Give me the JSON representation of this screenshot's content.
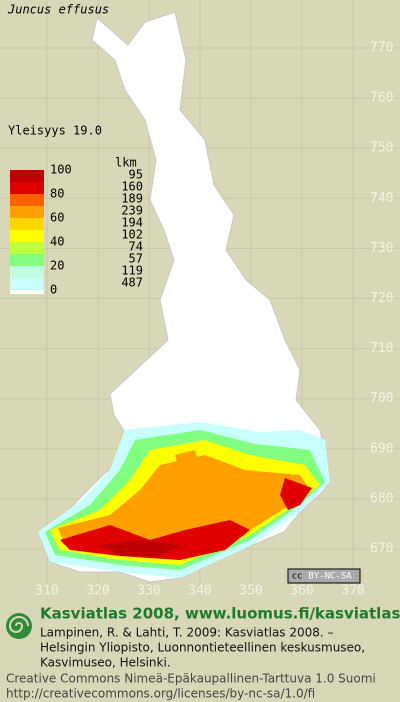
{
  "header": {
    "title": "Juncus effusus",
    "frequency": "Yleisyys  19.0"
  },
  "legend": {
    "count_header": "lkm",
    "scale_labels": [
      "100",
      "80",
      "60",
      "40",
      "20",
      "0"
    ],
    "counts": [
      "95",
      "160",
      "189",
      "239",
      "194",
      "102",
      "74",
      "57",
      "119",
      "487"
    ]
  },
  "grid": {
    "north": [
      "770",
      "760",
      "750",
      "740",
      "730",
      "720",
      "710",
      "700",
      "690",
      "680",
      "670"
    ],
    "east": [
      "310",
      "320",
      "330",
      "340",
      "350",
      "360",
      "370"
    ]
  },
  "badge": {
    "cc": "cc",
    "license": "BY-NC-SA"
  },
  "footer": {
    "title": "Kasviatlas 2008, www.luomus.fi/kasviatlas",
    "citation": [
      "Lampinen, R. & Lahti, T. 2009: Kasviatlas 2008. –",
      "Helsingin Yliopisto, Luonnontieteellinen keskusmuseo,",
      "Kasvimuseo, Helsinki."
    ],
    "license": [
      "Creative Commons Nimeä-Epäkaupallinen-Tarttuva 1.0 Suomi",
      "http://creativecommons.org/licenses/by-nc-sa/1.0/fi"
    ]
  }
}
